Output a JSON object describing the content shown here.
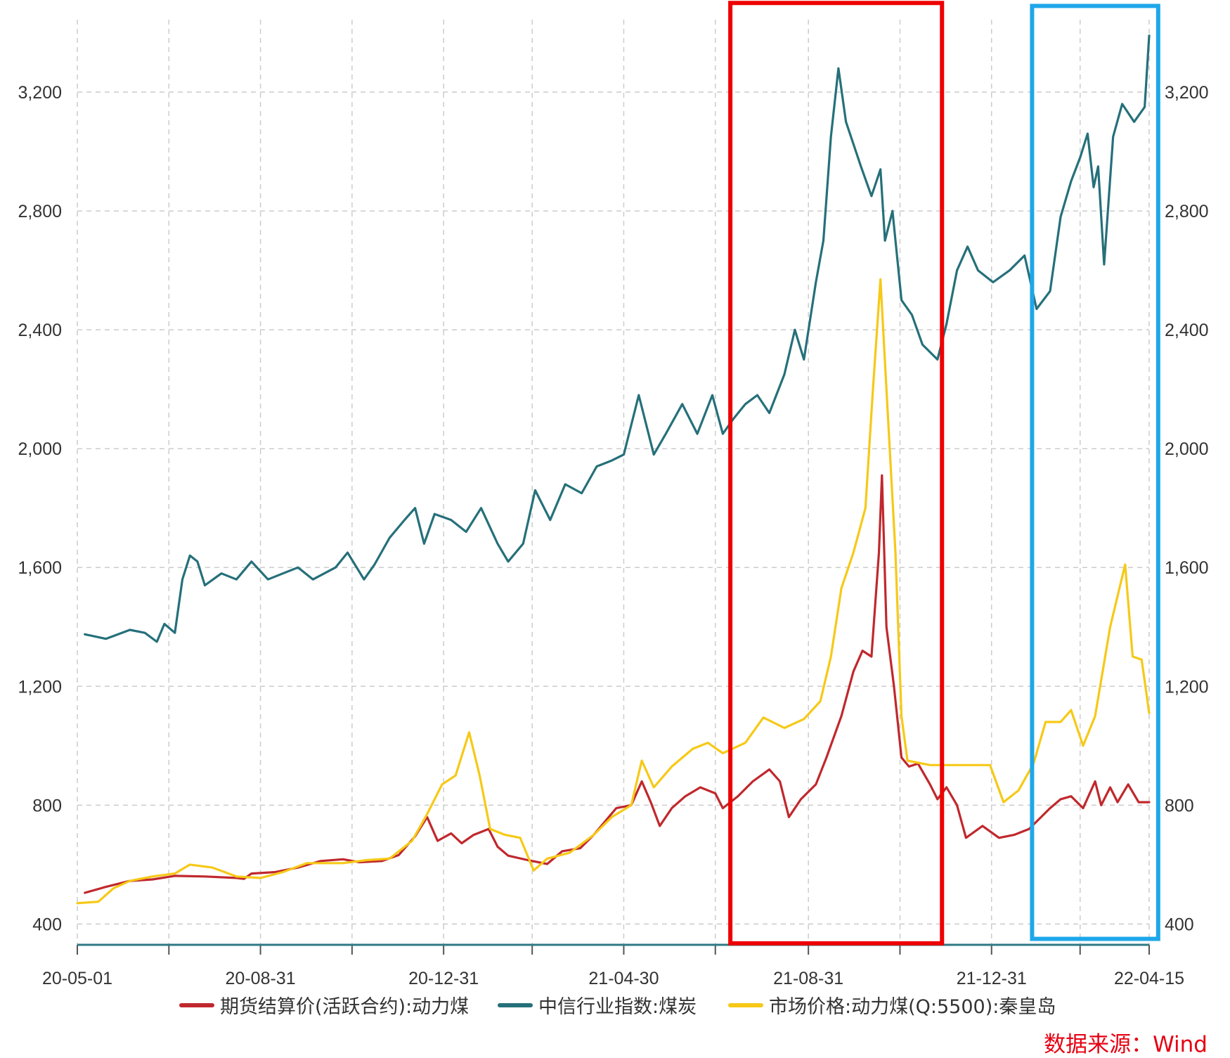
{
  "chart_data": {
    "type": "line",
    "title": "",
    "xlabel": "",
    "ylabel": "",
    "ylim": [
      330,
      3510
    ],
    "y_ticks": [
      400,
      800,
      1200,
      1600,
      2000,
      2400,
      2800,
      3200
    ],
    "y_tick_labels": [
      "400",
      "800",
      "1,200",
      "1,600",
      "2,000",
      "2,400",
      "2,800",
      "3,200"
    ],
    "x_range": [
      "2020-05-01",
      "2022-04-15"
    ],
    "x_ticks": [
      {
        "date": "2020-05-01",
        "label": "20-05-01"
      },
      {
        "date": "2020-07-01",
        "label": ""
      },
      {
        "date": "2020-08-31",
        "label": "20-08-31"
      },
      {
        "date": "2020-10-31",
        "label": ""
      },
      {
        "date": "2020-12-31",
        "label": "20-12-31"
      },
      {
        "date": "2021-02-28",
        "label": ""
      },
      {
        "date": "2021-04-30",
        "label": "21-04-30"
      },
      {
        "date": "2021-06-30",
        "label": ""
      },
      {
        "date": "2021-08-31",
        "label": "21-08-31"
      },
      {
        "date": "2021-10-31",
        "label": ""
      },
      {
        "date": "2021-12-31",
        "label": "21-12-31"
      },
      {
        "date": "2022-02-28",
        "label": ""
      },
      {
        "date": "2022-04-15",
        "label": "22-04-15"
      }
    ],
    "grid": true,
    "legend_position": "bottom",
    "series": [
      {
        "name": "期货结算价(活跃合约):动力煤",
        "color": "#c0282d",
        "points": [
          [
            "2020-05-06",
            505
          ],
          [
            "2020-05-20",
            525
          ],
          [
            "2020-06-05",
            545
          ],
          [
            "2020-06-20",
            550
          ],
          [
            "2020-07-05",
            562
          ],
          [
            "2020-07-25",
            560
          ],
          [
            "2020-08-15",
            555
          ],
          [
            "2020-08-20",
            552
          ],
          [
            "2020-08-25",
            570
          ],
          [
            "2020-09-10",
            575
          ],
          [
            "2020-09-25",
            590
          ],
          [
            "2020-10-10",
            612
          ],
          [
            "2020-10-25",
            618
          ],
          [
            "2020-11-05",
            608
          ],
          [
            "2020-11-20",
            612
          ],
          [
            "2020-12-01",
            632
          ],
          [
            "2020-12-12",
            695
          ],
          [
            "2020-12-20",
            760
          ],
          [
            "2020-12-27",
            680
          ],
          [
            "2021-01-05",
            705
          ],
          [
            "2021-01-12",
            672
          ],
          [
            "2021-01-20",
            700
          ],
          [
            "2021-01-30",
            720
          ],
          [
            "2021-02-05",
            660
          ],
          [
            "2021-02-12",
            630
          ],
          [
            "2021-02-25",
            615
          ],
          [
            "2021-03-10",
            602
          ],
          [
            "2021-03-20",
            645
          ],
          [
            "2021-04-01",
            655
          ],
          [
            "2021-04-10",
            700
          ],
          [
            "2021-04-20",
            760
          ],
          [
            "2021-04-25",
            790
          ],
          [
            "2021-05-05",
            800
          ],
          [
            "2021-05-12",
            880
          ],
          [
            "2021-05-18",
            810
          ],
          [
            "2021-05-24",
            730
          ],
          [
            "2021-06-01",
            790
          ],
          [
            "2021-06-10",
            830
          ],
          [
            "2021-06-20",
            860
          ],
          [
            "2021-06-30",
            840
          ],
          [
            "2021-07-05",
            790
          ],
          [
            "2021-07-15",
            830
          ],
          [
            "2021-07-25",
            880
          ],
          [
            "2021-08-05",
            920
          ],
          [
            "2021-08-12",
            880
          ],
          [
            "2021-08-18",
            760
          ],
          [
            "2021-08-26",
            820
          ],
          [
            "2021-09-05",
            870
          ],
          [
            "2021-09-12",
            960
          ],
          [
            "2021-09-22",
            1100
          ],
          [
            "2021-09-30",
            1250
          ],
          [
            "2021-10-06",
            1320
          ],
          [
            "2021-10-12",
            1300
          ],
          [
            "2021-10-17",
            1650
          ],
          [
            "2021-10-19",
            1910
          ],
          [
            "2021-10-22",
            1400
          ],
          [
            "2021-10-27",
            1200
          ],
          [
            "2021-11-01",
            960
          ],
          [
            "2021-11-06",
            930
          ],
          [
            "2021-11-12",
            940
          ],
          [
            "2021-11-20",
            870
          ],
          [
            "2021-11-25",
            820
          ],
          [
            "2021-12-01",
            860
          ],
          [
            "2021-12-08",
            800
          ],
          [
            "2021-12-14",
            690
          ],
          [
            "2021-12-25",
            730
          ],
          [
            "2022-01-05",
            690
          ],
          [
            "2022-01-15",
            700
          ],
          [
            "2022-01-25",
            720
          ],
          [
            "2022-02-08",
            790
          ],
          [
            "2022-02-15",
            820
          ],
          [
            "2022-02-22",
            830
          ],
          [
            "2022-03-02",
            790
          ],
          [
            "2022-03-10",
            880
          ],
          [
            "2022-03-14",
            800
          ],
          [
            "2022-03-20",
            860
          ],
          [
            "2022-03-25",
            810
          ],
          [
            "2022-04-01",
            870
          ],
          [
            "2022-04-08",
            810
          ],
          [
            "2022-04-15",
            810
          ]
        ]
      },
      {
        "name": "中信行业指数:煤炭",
        "color": "#25707a",
        "points": [
          [
            "2020-05-06",
            1375
          ],
          [
            "2020-05-20",
            1360
          ],
          [
            "2020-06-05",
            1390
          ],
          [
            "2020-06-15",
            1380
          ],
          [
            "2020-06-23",
            1350
          ],
          [
            "2020-06-28",
            1410
          ],
          [
            "2020-07-05",
            1380
          ],
          [
            "2020-07-10",
            1560
          ],
          [
            "2020-07-15",
            1640
          ],
          [
            "2020-07-20",
            1620
          ],
          [
            "2020-07-25",
            1540
          ],
          [
            "2020-08-05",
            1580
          ],
          [
            "2020-08-15",
            1560
          ],
          [
            "2020-08-25",
            1620
          ],
          [
            "2020-09-05",
            1560
          ],
          [
            "2020-09-15",
            1580
          ],
          [
            "2020-09-25",
            1600
          ],
          [
            "2020-10-05",
            1560
          ],
          [
            "2020-10-20",
            1600
          ],
          [
            "2020-10-28",
            1650
          ],
          [
            "2020-11-08",
            1560
          ],
          [
            "2020-11-15",
            1610
          ],
          [
            "2020-11-25",
            1700
          ],
          [
            "2020-12-05",
            1760
          ],
          [
            "2020-12-12",
            1800
          ],
          [
            "2020-12-18",
            1680
          ],
          [
            "2020-12-25",
            1780
          ],
          [
            "2021-01-05",
            1760
          ],
          [
            "2021-01-15",
            1720
          ],
          [
            "2021-01-25",
            1800
          ],
          [
            "2021-02-05",
            1680
          ],
          [
            "2021-02-12",
            1620
          ],
          [
            "2021-02-22",
            1680
          ],
          [
            "2021-03-02",
            1860
          ],
          [
            "2021-03-12",
            1760
          ],
          [
            "2021-03-22",
            1880
          ],
          [
            "2021-04-02",
            1850
          ],
          [
            "2021-04-12",
            1940
          ],
          [
            "2021-04-22",
            1960
          ],
          [
            "2021-04-30",
            1980
          ],
          [
            "2021-05-10",
            2180
          ],
          [
            "2021-05-20",
            1980
          ],
          [
            "2021-05-28",
            2050
          ],
          [
            "2021-06-08",
            2150
          ],
          [
            "2021-06-18",
            2050
          ],
          [
            "2021-06-28",
            2180
          ],
          [
            "2021-07-05",
            2050
          ],
          [
            "2021-07-12",
            2100
          ],
          [
            "2021-07-20",
            2150
          ],
          [
            "2021-07-28",
            2180
          ],
          [
            "2021-08-05",
            2120
          ],
          [
            "2021-08-15",
            2250
          ],
          [
            "2021-08-22",
            2400
          ],
          [
            "2021-08-28",
            2300
          ],
          [
            "2021-09-05",
            2560
          ],
          [
            "2021-09-10",
            2700
          ],
          [
            "2021-09-15",
            3050
          ],
          [
            "2021-09-20",
            3280
          ],
          [
            "2021-09-25",
            3100
          ],
          [
            "2021-10-05",
            2950
          ],
          [
            "2021-10-12",
            2850
          ],
          [
            "2021-10-18",
            2940
          ],
          [
            "2021-10-21",
            2700
          ],
          [
            "2021-10-26",
            2800
          ],
          [
            "2021-11-01",
            2500
          ],
          [
            "2021-11-08",
            2450
          ],
          [
            "2021-11-15",
            2350
          ],
          [
            "2021-11-25",
            2300
          ],
          [
            "2021-12-01",
            2420
          ],
          [
            "2021-12-08",
            2600
          ],
          [
            "2021-12-15",
            2680
          ],
          [
            "2021-12-22",
            2600
          ],
          [
            "2022-01-01",
            2560
          ],
          [
            "2022-01-12",
            2600
          ],
          [
            "2022-01-22",
            2650
          ],
          [
            "2022-01-30",
            2470
          ],
          [
            "2022-02-08",
            2530
          ],
          [
            "2022-02-15",
            2780
          ],
          [
            "2022-02-22",
            2900
          ],
          [
            "2022-02-28",
            2980
          ],
          [
            "2022-03-05",
            3060
          ],
          [
            "2022-03-09",
            2880
          ],
          [
            "2022-03-12",
            2950
          ],
          [
            "2022-03-16",
            2620
          ],
          [
            "2022-03-22",
            3050
          ],
          [
            "2022-03-28",
            3160
          ],
          [
            "2022-04-05",
            3100
          ],
          [
            "2022-04-12",
            3150
          ],
          [
            "2022-04-15",
            3390
          ]
        ]
      },
      {
        "name": "市场价格:动力煤(Q:5500):秦皇岛",
        "color": "#f6c917",
        "points": [
          [
            "2020-05-01",
            470
          ],
          [
            "2020-05-15",
            475
          ],
          [
            "2020-05-25",
            520
          ],
          [
            "2020-06-05",
            545
          ],
          [
            "2020-06-20",
            560
          ],
          [
            "2020-07-05",
            570
          ],
          [
            "2020-07-15",
            600
          ],
          [
            "2020-07-30",
            590
          ],
          [
            "2020-08-15",
            560
          ],
          [
            "2020-08-31",
            555
          ],
          [
            "2020-09-15",
            575
          ],
          [
            "2020-10-01",
            605
          ],
          [
            "2020-10-25",
            605
          ],
          [
            "2020-11-10",
            615
          ],
          [
            "2020-11-25",
            620
          ],
          [
            "2020-12-10",
            680
          ],
          [
            "2020-12-20",
            770
          ],
          [
            "2020-12-30",
            870
          ],
          [
            "2021-01-08",
            900
          ],
          [
            "2021-01-17",
            1045
          ],
          [
            "2021-01-24",
            900
          ],
          [
            "2021-01-31",
            720
          ],
          [
            "2021-02-10",
            700
          ],
          [
            "2021-02-20",
            690
          ],
          [
            "2021-03-01",
            580
          ],
          [
            "2021-03-10",
            620
          ],
          [
            "2021-03-25",
            640
          ],
          [
            "2021-04-10",
            700
          ],
          [
            "2021-04-22",
            760
          ],
          [
            "2021-05-05",
            800
          ],
          [
            "2021-05-12",
            950
          ],
          [
            "2021-05-20",
            860
          ],
          [
            "2021-06-01",
            930
          ],
          [
            "2021-06-15",
            990
          ],
          [
            "2021-06-25",
            1010
          ],
          [
            "2021-07-05",
            975
          ],
          [
            "2021-07-20",
            1010
          ],
          [
            "2021-08-01",
            1095
          ],
          [
            "2021-08-15",
            1060
          ],
          [
            "2021-08-28",
            1090
          ],
          [
            "2021-09-08",
            1150
          ],
          [
            "2021-09-15",
            1300
          ],
          [
            "2021-09-22",
            1530
          ],
          [
            "2021-09-30",
            1650
          ],
          [
            "2021-10-08",
            1800
          ],
          [
            "2021-10-13",
            2200
          ],
          [
            "2021-10-18",
            2570
          ],
          [
            "2021-10-22",
            2200
          ],
          [
            "2021-10-28",
            1650
          ],
          [
            "2021-11-01",
            1100
          ],
          [
            "2021-11-05",
            950
          ],
          [
            "2021-11-20",
            935
          ],
          [
            "2021-12-05",
            935
          ],
          [
            "2021-12-30",
            935
          ],
          [
            "2022-01-08",
            810
          ],
          [
            "2022-01-18",
            850
          ],
          [
            "2022-01-28",
            940
          ],
          [
            "2022-02-05",
            1080
          ],
          [
            "2022-02-15",
            1080
          ],
          [
            "2022-02-22",
            1120
          ],
          [
            "2022-03-02",
            1000
          ],
          [
            "2022-03-10",
            1100
          ],
          [
            "2022-03-20",
            1400
          ],
          [
            "2022-03-30",
            1610
          ],
          [
            "2022-04-04",
            1300
          ],
          [
            "2022-04-10",
            1290
          ],
          [
            "2022-04-15",
            1110
          ]
        ]
      }
    ],
    "annotations": [
      {
        "type": "rectangle",
        "color": "#ee0000",
        "x_from": "2021-07-10",
        "x_to": "2021-11-28",
        "y_from": 335,
        "y_to": 3500
      },
      {
        "type": "rectangle",
        "color": "#1ea7ea",
        "x_from": "2022-01-27",
        "x_to": "2022-04-21",
        "y_from": 350,
        "y_to": 3490
      }
    ]
  },
  "source_note": "数据来源：Wind"
}
